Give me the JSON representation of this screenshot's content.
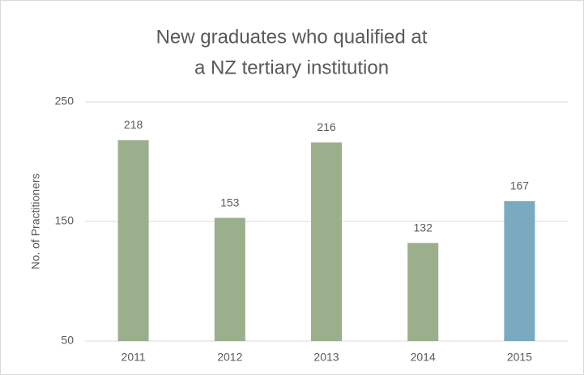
{
  "chart_data": {
    "type": "bar",
    "title": [
      "New graduates who qualified at",
      "a  NZ tertiary institution"
    ],
    "ylabel": "No. of Practitioners",
    "categories": [
      "2011",
      "2012",
      "2013",
      "2014",
      "2015"
    ],
    "values": [
      218,
      153,
      216,
      132,
      167
    ],
    "colors": [
      "#9caf8c",
      "#9caf8c",
      "#9caf8c",
      "#9caf8c",
      "#7aaac0"
    ],
    "ylim": [
      50,
      250
    ],
    "yticks": [
      50,
      150,
      250
    ],
    "grid": true
  }
}
